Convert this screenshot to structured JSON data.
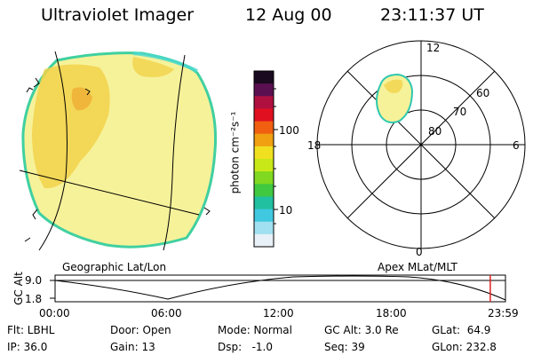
{
  "header": {
    "instrument": "Ultraviolet Imager",
    "date": "12 Aug 00",
    "time": "23:11:37 UT"
  },
  "colorbar": {
    "unit_label": "photon cm⁻²s⁻¹",
    "ticks": [
      "100",
      "10"
    ],
    "colors": [
      "#1a0a20",
      "#5a1050",
      "#b01040",
      "#e01020",
      "#f06010",
      "#f0a010",
      "#f0e020",
      "#c8e818",
      "#80d820",
      "#40c840",
      "#20c0a0",
      "#40c8e0",
      "#a0e0f0",
      "#e8f0f8"
    ]
  },
  "left_panel": {
    "caption": "Geographic Lat/Lon",
    "disk_fill": "#f6f29a",
    "hot_fill": "#f2d24a",
    "limb_color": "#40d0a0"
  },
  "right_panel": {
    "caption": "Apex MLat/MLT",
    "mlt_labels": {
      "top": "12",
      "left": "18",
      "right": "6",
      "bottom": "0"
    },
    "mlat_labels": [
      "80",
      "70",
      "60"
    ],
    "oval_color": "#f6f29a"
  },
  "timeline": {
    "axis_title": "GC Alt",
    "y_labels": [
      "9.0",
      "1.8"
    ],
    "time_labels": [
      "00:00",
      "06:00",
      "12:00",
      "18:00",
      "23:59"
    ],
    "marker_color": "#e02020",
    "marker_time_hours": 23.19
  },
  "status": {
    "flt": "Flt: LBHL",
    "ip": "IP: 36.0",
    "door": "Door: Open",
    "gain": "Gain: 13",
    "mode": "Mode: Normal",
    "dsp": "Dsp:   -1.0",
    "gc_alt": "GC Alt: 3.0 Re",
    "seq": "Seq: 39",
    "glat": "GLat:  64.9",
    "glon": "GLon: 232.8"
  }
}
